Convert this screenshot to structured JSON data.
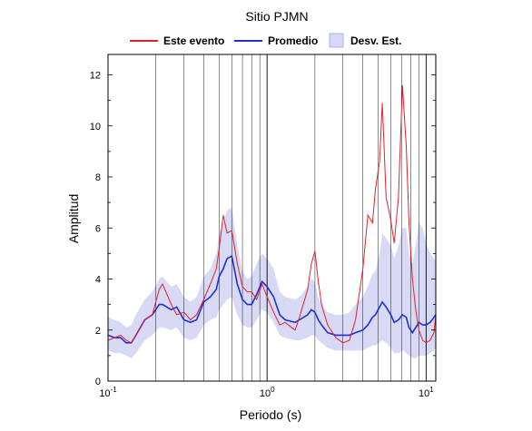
{
  "chart_data": {
    "type": "line",
    "title": "Sitio PJMN",
    "xlabel": "Periodo (s)",
    "ylabel": "Amplitud",
    "xscale": "log",
    "xlim": [
      0.1,
      11.5
    ],
    "ylim": [
      0,
      12.8
    ],
    "grid": "vertical only",
    "legend_position": "top",
    "x_ticks": [
      {
        "base": "10",
        "exp": "-1"
      },
      {
        "base": "10",
        "exp": "0"
      },
      {
        "base": "10",
        "exp": "1"
      }
    ],
    "y_ticks": [
      "0",
      "2",
      "4",
      "6",
      "8",
      "10",
      "12"
    ],
    "legend": [
      {
        "label": "Este evento",
        "color": "#e8202a"
      },
      {
        "label": "Promedio",
        "color": "#1f2fd8"
      },
      {
        "label": "Desv. Est.",
        "color": "#d7d9f5"
      }
    ],
    "x": [
      0.1,
      0.11,
      0.12,
      0.13,
      0.14,
      0.15,
      0.17,
      0.19,
      0.21,
      0.22,
      0.25,
      0.27,
      0.3,
      0.33,
      0.36,
      0.4,
      0.44,
      0.48,
      0.5,
      0.53,
      0.56,
      0.6,
      0.65,
      0.7,
      0.75,
      0.8,
      0.86,
      0.93,
      1.0,
      1.1,
      1.2,
      1.3,
      1.5,
      1.6,
      1.8,
      1.9,
      2.0,
      2.1,
      2.2,
      2.4,
      2.7,
      3.0,
      3.3,
      3.6,
      4.0,
      4.3,
      4.6,
      4.8,
      5.1,
      5.3,
      5.6,
      6.0,
      6.3,
      6.7,
      7.1,
      7.5,
      7.8,
      8.2,
      8.6,
      9.0,
      9.5,
      10.0,
      10.6,
      11.2,
      11.5
    ],
    "series": [
      {
        "name": "Este evento",
        "values": [
          1.6,
          1.7,
          1.8,
          1.6,
          1.5,
          1.8,
          2.4,
          2.6,
          3.6,
          3.8,
          3.0,
          2.6,
          2.7,
          2.4,
          2.6,
          3.2,
          3.8,
          4.4,
          5.2,
          6.5,
          5.8,
          5.9,
          4.6,
          3.7,
          3.5,
          3.5,
          3.2,
          3.8,
          3.3,
          2.7,
          2.2,
          2.3,
          2.0,
          2.5,
          3.6,
          4.6,
          5.1,
          3.9,
          3.0,
          2.2,
          1.7,
          1.5,
          1.6,
          2.4,
          4.4,
          6.5,
          6.2,
          7.5,
          8.6,
          10.9,
          7.2,
          6.3,
          5.4,
          7.2,
          11.6,
          9.2,
          6.2,
          4.0,
          2.8,
          2.0,
          1.6,
          1.5,
          1.6,
          1.9,
          2.6
        ]
      },
      {
        "name": "Promedio",
        "values": [
          1.8,
          1.7,
          1.7,
          1.5,
          1.5,
          1.8,
          2.4,
          2.6,
          3.0,
          3.0,
          2.8,
          2.9,
          2.4,
          2.3,
          2.4,
          3.1,
          3.3,
          3.6,
          4.1,
          4.4,
          4.8,
          4.9,
          3.8,
          3.2,
          3.0,
          3.0,
          3.4,
          3.9,
          3.7,
          3.3,
          2.6,
          2.4,
          2.3,
          2.4,
          2.6,
          2.8,
          2.7,
          2.4,
          2.2,
          1.9,
          1.8,
          1.8,
          1.8,
          1.9,
          2.0,
          2.2,
          2.5,
          2.6,
          2.9,
          3.1,
          2.9,
          2.6,
          2.3,
          2.4,
          2.6,
          2.5,
          2.1,
          1.9,
          2.1,
          2.3,
          2.2,
          2.2,
          2.3,
          2.5,
          2.6
        ]
      },
      {
        "name": "Desv. Est.",
        "upper": [
          2.5,
          2.4,
          2.3,
          2.1,
          2.2,
          2.6,
          3.2,
          3.5,
          4.0,
          4.1,
          3.7,
          3.8,
          3.3,
          3.1,
          3.3,
          4.1,
          4.4,
          5.0,
          5.8,
          6.2,
          6.7,
          6.8,
          5.3,
          4.3,
          4.0,
          4.1,
          4.6,
          5.0,
          4.8,
          4.4,
          3.5,
          3.3,
          3.2,
          3.3,
          3.7,
          4.0,
          3.9,
          3.3,
          3.0,
          2.7,
          2.6,
          2.6,
          2.7,
          3.0,
          3.3,
          3.7,
          4.2,
          4.3,
          5.0,
          5.8,
          5.6,
          5.3,
          4.8,
          5.3,
          6.0,
          6.0,
          5.0,
          4.6,
          5.3,
          6.2,
          6.0,
          5.4,
          5.0,
          4.8,
          4.7
        ],
        "lower": [
          1.2,
          1.1,
          1.1,
          1.0,
          0.9,
          1.1,
          1.6,
          1.8,
          2.1,
          2.1,
          2.0,
          2.1,
          1.7,
          1.6,
          1.7,
          2.2,
          2.4,
          2.5,
          2.8,
          3.0,
          3.2,
          3.3,
          2.6,
          2.2,
          2.1,
          2.1,
          2.4,
          2.8,
          2.7,
          2.3,
          1.8,
          1.7,
          1.6,
          1.6,
          1.7,
          1.8,
          1.8,
          1.6,
          1.5,
          1.3,
          1.2,
          1.2,
          1.2,
          1.2,
          1.2,
          1.3,
          1.4,
          1.4,
          1.5,
          1.6,
          1.5,
          1.3,
          1.1,
          1.1,
          1.2,
          1.1,
          1.0,
          0.9,
          0.9,
          1.0,
          1.0,
          1.0,
          1.1,
          1.2,
          1.3
        ]
      }
    ]
  }
}
